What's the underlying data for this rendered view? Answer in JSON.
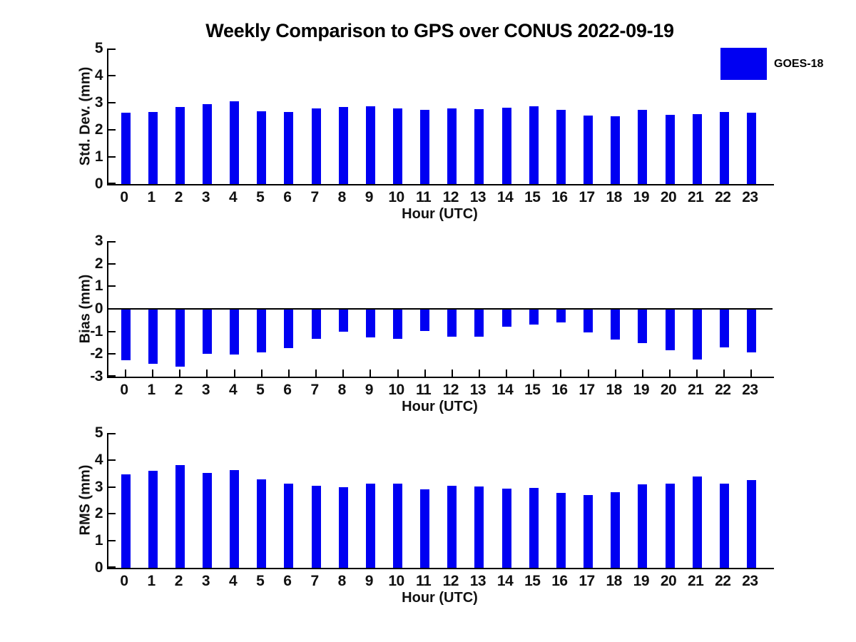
{
  "title": "Weekly Comparison to GPS over CONUS 2022-09-19",
  "legend": {
    "label": "GOES-18",
    "color": "#0000F2",
    "position": "top-right"
  },
  "colors": {
    "bar": "#0000F2",
    "axis": "#000000",
    "background": "#ffffff"
  },
  "chart_data": [
    {
      "type": "bar",
      "series_name": "GOES-18",
      "ylabel": "Std. Dev. (mm)",
      "xlabel": "Hour (UTC)",
      "ylim": [
        0,
        5
      ],
      "yticks": [
        0,
        1,
        2,
        3,
        4,
        5
      ],
      "grid": false,
      "categories": [
        "0",
        "1",
        "2",
        "3",
        "4",
        "5",
        "6",
        "7",
        "8",
        "9",
        "10",
        "11",
        "12",
        "13",
        "14",
        "15",
        "16",
        "17",
        "18",
        "19",
        "20",
        "21",
        "22",
        "23"
      ],
      "values": [
        2.62,
        2.67,
        2.84,
        2.94,
        3.05,
        2.68,
        2.65,
        2.78,
        2.83,
        2.88,
        2.8,
        2.73,
        2.78,
        2.76,
        2.81,
        2.88,
        2.73,
        2.52,
        2.49,
        2.73,
        2.54,
        2.57,
        2.65,
        2.62
      ]
    },
    {
      "type": "bar",
      "series_name": "GOES-18",
      "ylabel": "Bias (mm)",
      "xlabel": "Hour (UTC)",
      "ylim": [
        -3,
        3
      ],
      "yticks": [
        -3,
        -2,
        -1,
        0,
        1,
        2,
        3
      ],
      "grid": false,
      "categories": [
        "0",
        "1",
        "2",
        "3",
        "4",
        "5",
        "6",
        "7",
        "8",
        "9",
        "10",
        "11",
        "12",
        "13",
        "14",
        "15",
        "16",
        "17",
        "18",
        "19",
        "20",
        "21",
        "22",
        "23"
      ],
      "values": [
        -2.28,
        -2.42,
        -2.55,
        -1.98,
        -2.02,
        -1.92,
        -1.74,
        -1.32,
        -1.0,
        -1.26,
        -1.34,
        -0.98,
        -1.24,
        -1.22,
        -0.8,
        -0.7,
        -0.6,
        -1.04,
        -1.36,
        -1.5,
        -1.82,
        -2.24,
        -1.7,
        -1.94
      ]
    },
    {
      "type": "bar",
      "series_name": "GOES-18",
      "ylabel": "RMS (mm)",
      "xlabel": "Hour (UTC)",
      "ylim": [
        0,
        5
      ],
      "yticks": [
        0,
        1,
        2,
        3,
        4,
        5
      ],
      "grid": false,
      "categories": [
        "0",
        "1",
        "2",
        "3",
        "4",
        "5",
        "6",
        "7",
        "8",
        "9",
        "10",
        "11",
        "12",
        "13",
        "14",
        "15",
        "16",
        "17",
        "18",
        "19",
        "20",
        "21",
        "22",
        "23"
      ],
      "values": [
        3.46,
        3.6,
        3.8,
        3.52,
        3.62,
        3.28,
        3.12,
        3.05,
        3.0,
        3.12,
        3.12,
        2.9,
        3.05,
        3.02,
        2.93,
        2.95,
        2.78,
        2.71,
        2.81,
        3.1,
        3.12,
        3.38,
        3.12,
        3.25
      ]
    }
  ]
}
